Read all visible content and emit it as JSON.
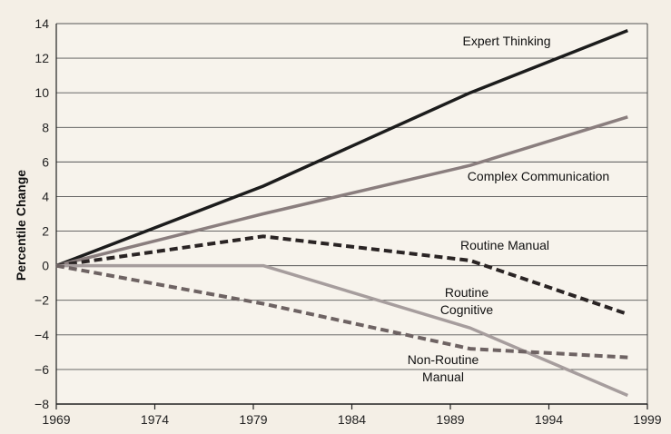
{
  "chart_data": {
    "type": "line",
    "ylabel": "Percentile Change",
    "xlabel": "",
    "xlim": [
      1969,
      1999
    ],
    "ylim": [
      -8,
      14
    ],
    "x_ticks": [
      1969,
      1974,
      1979,
      1984,
      1989,
      1994,
      1999
    ],
    "y_ticks": [
      -8,
      -6,
      -4,
      -2,
      0,
      2,
      4,
      6,
      8,
      10,
      12,
      14
    ],
    "grid": "horizontal",
    "legend": "none",
    "series": [
      {
        "name": "Expert Thinking",
        "label_lines": [
          "Expert Thinking"
        ],
        "color": "#1c1c1c",
        "dash": "solid",
        "x": [
          1969,
          1979.5,
          1990,
          1998
        ],
        "y": [
          0,
          4.6,
          10.0,
          13.6
        ]
      },
      {
        "name": "Complex Communication",
        "label_lines": [
          "Complex Communication"
        ],
        "color": "#8a7e7e",
        "dash": "solid",
        "x": [
          1969,
          1979.5,
          1990,
          1998
        ],
        "y": [
          0,
          3.0,
          5.8,
          8.6
        ]
      },
      {
        "name": "Routine Manual",
        "label_lines": [
          "Routine Manual"
        ],
        "color": "#2a2424",
        "dash": "dashed",
        "x": [
          1969,
          1979.5,
          1990,
          1998
        ],
        "y": [
          0,
          1.7,
          0.3,
          -2.8
        ]
      },
      {
        "name": "Routine Cognitive",
        "label_lines": [
          "Routine",
          "Cognitive"
        ],
        "color": "#a69d9d",
        "dash": "solid",
        "x": [
          1969,
          1979.5,
          1990,
          1998
        ],
        "y": [
          0,
          0,
          -3.6,
          -7.5
        ]
      },
      {
        "name": "Non-Routine Manual",
        "label_lines": [
          "Non-Routine",
          "Manual"
        ],
        "color": "#6e6363",
        "dash": "dashed",
        "x": [
          1969,
          1979.5,
          1990,
          1998
        ],
        "y": [
          0,
          -2.2,
          -4.8,
          -5.3
        ]
      }
    ]
  }
}
